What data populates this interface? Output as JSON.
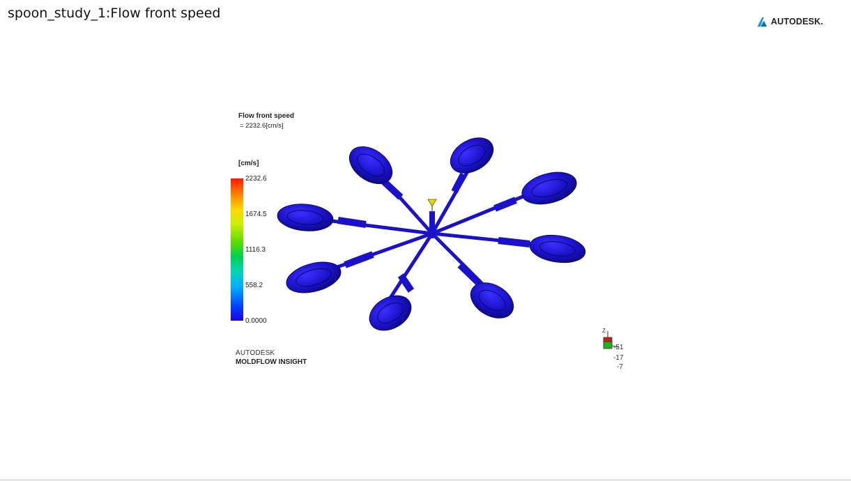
{
  "slide": {
    "title": "spoon_study_1:Flow front speed"
  },
  "brand": {
    "logo_icon": "autodesk-logo-icon",
    "name": "AUTODESK."
  },
  "result": {
    "name": "Flow front speed",
    "value_text": "= 2232.6[cm/s]"
  },
  "scale": {
    "unit": "[cm/s]",
    "labels": [
      "2232.6",
      "1674.5",
      "1116.3",
      "558.2",
      "0.0000"
    ],
    "colors": {
      "max": "#ff1800",
      "mid": "#5adc00",
      "min": "#2000e8"
    }
  },
  "product": {
    "vendor": "AUTODESK",
    "name": "MOLDFLOW INSIGHT"
  },
  "model": {
    "part_color": "#1a12c8",
    "cavity_count": 8
  },
  "orientation": {
    "axis_label": "Z",
    "values": [
      "-51",
      "-17",
      "-7"
    ]
  }
}
